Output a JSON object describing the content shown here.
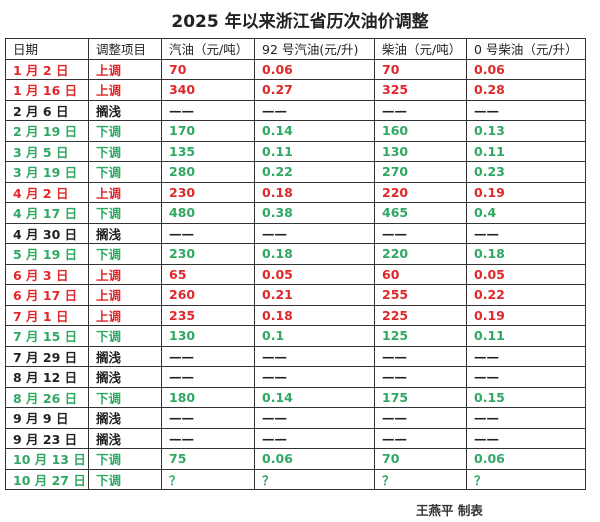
{
  "title": "2025 年以来浙江省历次油价调整",
  "headers": [
    "日期",
    "调整项目",
    "汽油（元/吨）",
    "92 号汽油(元/升)",
    "柴油（元/吨）",
    "0 号柴油（元/升）"
  ],
  "colors": {
    "up": "#e0282a",
    "down": "#2fa862",
    "flat": "#222222"
  },
  "rows": [
    [
      "1 月 2 日",
      "上调",
      "70",
      "0.06",
      "70",
      "0.06"
    ],
    [
      "1 月 16 日",
      "上调",
      "340",
      "0.27",
      "325",
      "0.28"
    ],
    [
      "2 月 6 日",
      "搁浅",
      "——",
      "——",
      "——",
      "——"
    ],
    [
      "2 月 19 日",
      "下调",
      "170",
      "0.14",
      "160",
      "0.13"
    ],
    [
      "3 月 5 日",
      "下调",
      "135",
      "0.11",
      "130",
      "0.11"
    ],
    [
      "3 月 19 日",
      "下调",
      "280",
      "0.22",
      "270",
      "0.23"
    ],
    [
      "4 月 2 日",
      "上调",
      "230",
      "0.18",
      "220",
      "0.19"
    ],
    [
      "4 月 17 日",
      "下调",
      "480",
      "0.38",
      "465",
      "0.4"
    ],
    [
      "4 月 30 日",
      "搁浅",
      "——",
      "——",
      "——",
      "——"
    ],
    [
      "5 月 19 日",
      "下调",
      "230",
      "0.18",
      "220",
      "0.18"
    ],
    [
      "6 月 3 日",
      "上调",
      "65",
      "0.05",
      "60",
      "0.05"
    ],
    [
      "6 月 17 日",
      "上调",
      "260",
      "0.21",
      "255",
      "0.22"
    ],
    [
      "7 月 1 日",
      "上调",
      "235",
      "0.18",
      "225",
      "0.19"
    ],
    [
      "7 月 15 日",
      "下调",
      "130",
      "0.1",
      "125",
      "0.11"
    ],
    [
      "7 月 29 日",
      "搁浅",
      "——",
      "——",
      "——",
      "——"
    ],
    [
      "8 月 12 日",
      "搁浅",
      "——",
      "——",
      "——",
      "——"
    ],
    [
      "8 月 26 日",
      "下调",
      "180",
      "0.14",
      "175",
      "0.15"
    ],
    [
      "9 月 9 日",
      "搁浅",
      "——",
      "——",
      "——",
      "——"
    ],
    [
      "9 月 23 日",
      "搁浅",
      "——",
      "——",
      "——",
      "——"
    ],
    [
      "10 月 13 日",
      "下调",
      "75",
      "0.06",
      "70",
      "0.06"
    ],
    [
      "10 月 27 日",
      "下调",
      "？",
      "？",
      "？",
      "？"
    ]
  ],
  "signature": "王燕平  制表"
}
